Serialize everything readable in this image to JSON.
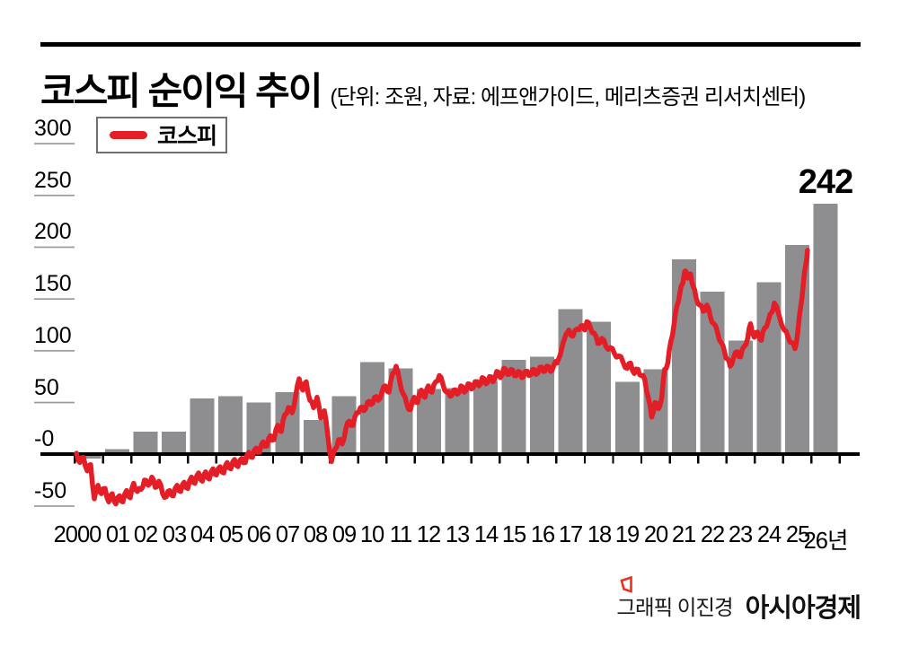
{
  "header": {
    "title": "코스피 순이익 추이",
    "subtitle": "(단위: 조원, 자료: 에프앤가이드, 메리츠증권 리서치센터)"
  },
  "legend": {
    "label": "코스피",
    "swatch_color": "#e41e26"
  },
  "annotation": {
    "last_bar_value": "242"
  },
  "credit": {
    "prefix": "그래픽 이진경",
    "brand": "아시아경제",
    "logo_color": "#e8321e"
  },
  "chart_data": {
    "type": "bar",
    "title": "코스피 순이익 추이",
    "unit": "조원",
    "sources": "에프앤가이드, 메리츠증권 리서치센터",
    "categories": [
      "2000",
      "01",
      "02",
      "03",
      "04",
      "05",
      "06",
      "07",
      "08",
      "09",
      "10",
      "11",
      "12",
      "13",
      "14",
      "15",
      "16",
      "17",
      "18",
      "19",
      "20",
      "21",
      "22",
      "23",
      "24",
      "25",
      "26년"
    ],
    "values": [
      -4,
      5,
      22,
      22,
      54,
      56,
      50,
      60,
      33,
      56,
      89,
      83,
      63,
      64,
      71,
      91,
      94,
      140,
      128,
      70,
      82,
      188,
      157,
      110,
      166,
      202,
      242
    ],
    "bar_color": "#8e8e91",
    "axis_color": "#000000",
    "ytick_line_color": "#9a9a9a",
    "yticks": [
      300,
      250,
      200,
      150,
      100,
      50,
      0,
      -50
    ],
    "ytick_labels": [
      "300",
      "250",
      "200",
      "150",
      "100",
      "50",
      "-0",
      "-50"
    ],
    "ylim": [
      -75,
      310
    ],
    "grid": false,
    "legend_position": "top-left",
    "annotation": {
      "text": "242",
      "year_index": 26
    },
    "line_series": {
      "name": "코스피",
      "color": "#e41e26",
      "width": 5.5,
      "roughness": 2.2,
      "points": [
        [
          -0.44,
          1
        ],
        [
          -0.32,
          -8
        ],
        [
          -0.19,
          -3
        ],
        [
          -0.06,
          -16
        ],
        [
          0.06,
          -10
        ],
        [
          0.19,
          -43
        ],
        [
          0.32,
          -30
        ],
        [
          0.44,
          -38
        ],
        [
          0.57,
          -33
        ],
        [
          0.7,
          -46
        ],
        [
          0.82,
          -38
        ],
        [
          0.95,
          -48
        ],
        [
          1.08,
          -40
        ],
        [
          1.2,
          -46
        ],
        [
          1.33,
          -35
        ],
        [
          1.46,
          -42
        ],
        [
          1.58,
          -28
        ],
        [
          1.71,
          -36
        ],
        [
          1.84,
          -34
        ],
        [
          1.96,
          -25
        ],
        [
          2.09,
          -30
        ],
        [
          2.22,
          -22
        ],
        [
          2.34,
          -32
        ],
        [
          2.47,
          -26
        ],
        [
          2.6,
          -38
        ],
        [
          2.73,
          -41
        ],
        [
          2.85,
          -35
        ],
        [
          2.98,
          -40
        ],
        [
          3.11,
          -30
        ],
        [
          3.24,
          -36
        ],
        [
          3.36,
          -27
        ],
        [
          3.49,
          -33
        ],
        [
          3.62,
          -22
        ],
        [
          3.74,
          -28
        ],
        [
          3.87,
          -18
        ],
        [
          4.0,
          -26
        ],
        [
          4.12,
          -17
        ],
        [
          4.25,
          -24
        ],
        [
          4.38,
          -14
        ],
        [
          4.5,
          -20
        ],
        [
          4.63,
          -12
        ],
        [
          4.76,
          -18
        ],
        [
          4.88,
          -8
        ],
        [
          5.01,
          -14
        ],
        [
          5.14,
          -5
        ],
        [
          5.26,
          -12
        ],
        [
          5.39,
          -4
        ],
        [
          5.52,
          -8
        ],
        [
          5.64,
          2
        ],
        [
          5.77,
          -3
        ],
        [
          5.9,
          6
        ],
        [
          6.02,
          2
        ],
        [
          6.15,
          12
        ],
        [
          6.28,
          8
        ],
        [
          6.4,
          18
        ],
        [
          6.53,
          14
        ],
        [
          6.66,
          28
        ],
        [
          6.79,
          22
        ],
        [
          6.91,
          38
        ],
        [
          7.04,
          45
        ],
        [
          7.17,
          40
        ],
        [
          7.29,
          55
        ],
        [
          7.42,
          73
        ],
        [
          7.55,
          62
        ],
        [
          7.67,
          70
        ],
        [
          7.8,
          52
        ],
        [
          7.93,
          45
        ],
        [
          8.05,
          55
        ],
        [
          8.18,
          35
        ],
        [
          8.31,
          42
        ],
        [
          8.43,
          18
        ],
        [
          8.56,
          -7
        ],
        [
          8.69,
          5
        ],
        [
          8.81,
          14
        ],
        [
          8.94,
          10
        ],
        [
          9.07,
          25
        ],
        [
          9.19,
          32
        ],
        [
          9.32,
          28
        ],
        [
          9.45,
          40
        ],
        [
          9.58,
          45
        ],
        [
          9.7,
          42
        ],
        [
          9.83,
          50
        ],
        [
          9.96,
          48
        ],
        [
          10.08,
          55
        ],
        [
          10.21,
          52
        ],
        [
          10.34,
          60
        ],
        [
          10.46,
          66
        ],
        [
          10.59,
          60
        ],
        [
          10.72,
          78
        ],
        [
          10.84,
          85
        ],
        [
          10.97,
          70
        ],
        [
          11.1,
          58
        ],
        [
          11.22,
          48
        ],
        [
          11.35,
          43
        ],
        [
          11.48,
          55
        ],
        [
          11.6,
          50
        ],
        [
          11.73,
          62
        ],
        [
          11.86,
          55
        ],
        [
          11.98,
          66
        ],
        [
          12.11,
          60
        ],
        [
          12.24,
          70
        ],
        [
          12.37,
          76
        ],
        [
          12.49,
          68
        ],
        [
          12.62,
          60
        ],
        [
          12.75,
          56
        ],
        [
          12.87,
          62
        ],
        [
          13.0,
          58
        ],
        [
          13.13,
          66
        ],
        [
          13.25,
          60
        ],
        [
          13.38,
          68
        ],
        [
          13.5,
          63
        ],
        [
          13.63,
          70
        ],
        [
          13.76,
          66
        ],
        [
          13.88,
          74
        ],
        [
          14.01,
          68
        ],
        [
          14.14,
          75
        ],
        [
          14.26,
          70
        ],
        [
          14.39,
          80
        ],
        [
          14.52,
          74
        ],
        [
          14.64,
          83
        ],
        [
          14.77,
          77
        ],
        [
          14.9,
          82
        ],
        [
          15.02,
          76
        ],
        [
          15.15,
          80
        ],
        [
          15.28,
          74
        ],
        [
          15.4,
          80
        ],
        [
          15.53,
          76
        ],
        [
          15.66,
          82
        ],
        [
          15.78,
          77
        ],
        [
          15.91,
          84
        ],
        [
          16.04,
          80
        ],
        [
          16.16,
          85
        ],
        [
          16.29,
          80
        ],
        [
          16.42,
          87
        ],
        [
          16.52,
          88
        ],
        [
          16.73,
          107
        ],
        [
          16.94,
          120
        ],
        [
          17.08,
          114
        ],
        [
          17.23,
          121
        ],
        [
          17.37,
          124
        ],
        [
          17.5,
          120
        ],
        [
          17.57,
          128
        ],
        [
          17.7,
          122
        ],
        [
          17.83,
          117
        ],
        [
          17.96,
          107
        ],
        [
          18.1,
          112
        ],
        [
          18.25,
          104
        ],
        [
          18.4,
          103
        ],
        [
          18.55,
          97
        ],
        [
          18.7,
          95
        ],
        [
          18.85,
          89
        ],
        [
          19.0,
          83
        ],
        [
          19.12,
          88
        ],
        [
          19.25,
          78
        ],
        [
          19.38,
          82
        ],
        [
          19.5,
          76
        ],
        [
          19.62,
          72
        ],
        [
          19.74,
          55
        ],
        [
          19.86,
          36
        ],
        [
          19.98,
          50
        ],
        [
          20.1,
          44
        ],
        [
          20.22,
          55
        ],
        [
          20.32,
          82
        ],
        [
          20.43,
          88
        ],
        [
          20.54,
          109
        ],
        [
          20.65,
          125
        ],
        [
          20.76,
          144
        ],
        [
          20.86,
          156
        ],
        [
          20.94,
          164
        ],
        [
          21.0,
          172
        ],
        [
          21.06,
          177
        ],
        [
          21.14,
          170
        ],
        [
          21.24,
          174
        ],
        [
          21.33,
          162
        ],
        [
          21.43,
          151
        ],
        [
          21.56,
          144
        ],
        [
          21.68,
          138
        ],
        [
          21.81,
          144
        ],
        [
          21.93,
          133
        ],
        [
          22.06,
          126
        ],
        [
          22.19,
          117
        ],
        [
          22.31,
          108
        ],
        [
          22.44,
          98
        ],
        [
          22.53,
          92
        ],
        [
          22.63,
          85
        ],
        [
          22.75,
          93
        ],
        [
          22.88,
          99
        ],
        [
          23.0,
          94
        ],
        [
          23.12,
          104
        ],
        [
          23.25,
          112
        ],
        [
          23.35,
          126
        ],
        [
          23.48,
          113
        ],
        [
          23.6,
          118
        ],
        [
          23.73,
          110
        ],
        [
          23.85,
          122
        ],
        [
          23.98,
          129
        ],
        [
          24.1,
          137
        ],
        [
          24.19,
          146
        ],
        [
          24.35,
          135
        ],
        [
          24.54,
          120
        ],
        [
          24.68,
          113
        ],
        [
          24.8,
          108
        ],
        [
          24.92,
          102
        ],
        [
          25.02,
          118
        ],
        [
          25.12,
          142
        ],
        [
          25.22,
          166
        ],
        [
          25.3,
          183
        ],
        [
          25.36,
          197
        ]
      ]
    }
  }
}
